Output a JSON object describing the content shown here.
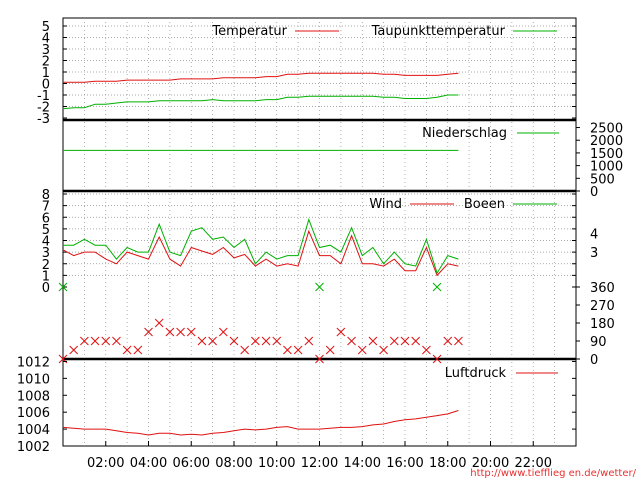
{
  "source_url": "http://www.tiefflieg en.de/wetter/",
  "colors": {
    "red": "#e01010",
    "green": "#00b000",
    "grid": "#909090",
    "axis": "#000000",
    "url": "#e83030"
  },
  "chart_data": [
    {
      "type": "line",
      "panel": "temperature",
      "x": [
        0,
        0.5,
        1,
        1.5,
        2,
        2.5,
        3,
        3.5,
        4,
        4.5,
        5,
        5.5,
        6,
        6.5,
        7,
        7.5,
        8,
        8.5,
        9,
        9.5,
        10,
        10.5,
        11,
        11.5,
        12,
        12.5,
        13,
        13.5,
        14,
        14.5,
        15,
        15.5,
        16,
        16.5,
        17,
        17.5,
        18,
        18.5
      ],
      "series": [
        {
          "name": "Temperatur",
          "color": "#e01010",
          "values": [
            0.1,
            0.1,
            0.1,
            0.2,
            0.2,
            0.2,
            0.3,
            0.3,
            0.3,
            0.3,
            0.3,
            0.4,
            0.4,
            0.4,
            0.4,
            0.5,
            0.5,
            0.5,
            0.5,
            0.6,
            0.6,
            0.8,
            0.8,
            0.9,
            0.9,
            0.9,
            0.9,
            0.9,
            0.9,
            0.9,
            0.8,
            0.8,
            0.7,
            0.7,
            0.7,
            0.7,
            0.8,
            0.9
          ]
        },
        {
          "name": "Taupunkttemperatur",
          "color": "#00b000",
          "values": [
            -2.2,
            -2.1,
            -2.1,
            -1.8,
            -1.8,
            -1.7,
            -1.6,
            -1.6,
            -1.6,
            -1.5,
            -1.5,
            -1.5,
            -1.5,
            -1.5,
            -1.4,
            -1.5,
            -1.5,
            -1.5,
            -1.5,
            -1.4,
            -1.4,
            -1.2,
            -1.2,
            -1.1,
            -1.1,
            -1.1,
            -1.1,
            -1.1,
            -1.1,
            -1.1,
            -1.2,
            -1.2,
            -1.3,
            -1.3,
            -1.3,
            -1.2,
            -1.0,
            -1.0
          ]
        }
      ],
      "ylim": [
        -3,
        5
      ],
      "yticks": [
        "-3",
        "-2",
        "-1",
        "0",
        "1",
        "2",
        "3",
        "4",
        "5"
      ],
      "legend": "top-right",
      "grid": true
    },
    {
      "type": "line",
      "panel": "precipitation",
      "x": [
        0,
        18.5
      ],
      "series": [
        {
          "name": "Niederschlag",
          "color": "#00b000",
          "values": [
            1600,
            1600
          ]
        }
      ],
      "ylim": [
        0,
        2600
      ],
      "yticks": [
        "2500",
        "2000",
        "1500",
        "1000",
        "500",
        "0"
      ],
      "y_axis_side": "right",
      "legend": "top-right"
    },
    {
      "type": "line",
      "panel": "wind",
      "x": [
        0,
        0.5,
        1,
        1.5,
        2,
        2.5,
        3,
        3.5,
        4,
        4.5,
        5,
        5.5,
        6,
        6.5,
        7,
        7.5,
        8,
        8.5,
        9,
        9.5,
        10,
        10.5,
        11,
        11.5,
        12,
        12.5,
        13,
        13.5,
        14,
        14.5,
        15,
        15.5,
        16,
        16.5,
        17,
        17.5,
        18,
        18.5
      ],
      "series": [
        {
          "name": "Wind",
          "color": "#e01010",
          "values": [
            3.2,
            2.7,
            3.0,
            3.0,
            2.4,
            2.0,
            3.0,
            2.7,
            2.4,
            4.3,
            2.4,
            1.8,
            3.4,
            3.1,
            2.8,
            3.4,
            2.5,
            2.8,
            1.8,
            2.4,
            1.8,
            2.0,
            1.8,
            4.8,
            2.7,
            2.7,
            2.0,
            4.4,
            2.0,
            2.0,
            1.8,
            2.4,
            1.4,
            1.4,
            3.4,
            1.0,
            2.0,
            1.8
          ]
        },
        {
          "name": "Boeen",
          "color": "#00b000",
          "values": [
            3.6,
            3.6,
            4.1,
            3.6,
            3.6,
            2.4,
            3.4,
            3.0,
            3.0,
            5.4,
            3.0,
            2.7,
            4.8,
            5.1,
            4.1,
            4.3,
            3.4,
            4.1,
            2.0,
            3.0,
            2.4,
            2.7,
            2.7,
            5.8,
            3.4,
            3.6,
            3.0,
            5.1,
            2.7,
            3.4,
            2.0,
            3.0,
            2.0,
            1.8,
            4.1,
            1.2,
            2.7,
            2.4
          ]
        }
      ],
      "ylim": [
        0,
        8
      ],
      "yticks": [
        "0",
        "1",
        "2",
        "3",
        "4",
        "5",
        "6",
        "7",
        "8"
      ],
      "right_labels": [
        "4",
        "3"
      ],
      "legend": "top-right",
      "grid": true
    },
    {
      "type": "scatter",
      "panel": "wind_direction",
      "x": [
        0,
        0.5,
        1,
        1.5,
        2,
        2.5,
        3,
        3.5,
        4,
        4.5,
        5,
        5.5,
        6,
        6.5,
        7,
        7.5,
        8,
        8.5,
        9,
        9.5,
        10,
        10.5,
        11,
        11.5,
        12,
        12.5,
        13,
        13.5,
        14,
        14.5,
        15,
        15.5,
        16,
        16.5,
        17,
        17.5,
        18,
        18.5
      ],
      "values": [
        0,
        45,
        90,
        90,
        90,
        90,
        45,
        45,
        135,
        180,
        135,
        135,
        135,
        90,
        90,
        135,
        90,
        45,
        90,
        90,
        90,
        45,
        45,
        90,
        0,
        45,
        135,
        90,
        45,
        90,
        45,
        90,
        90,
        90,
        45,
        0,
        90,
        90
      ],
      "ylim": [
        0,
        360
      ],
      "yticks": [
        "0",
        "90",
        "180",
        "270",
        "360"
      ],
      "y_axis_side": "right"
    },
    {
      "type": "line",
      "panel": "pressure",
      "x": [
        0,
        0.5,
        1,
        1.5,
        2,
        2.5,
        3,
        3.5,
        4,
        4.5,
        5,
        5.5,
        6,
        6.5,
        7,
        7.5,
        8,
        8.5,
        9,
        9.5,
        10,
        10.5,
        11,
        11.5,
        12,
        12.5,
        13,
        13.5,
        14,
        14.5,
        15,
        15.5,
        16,
        16.5,
        17,
        17.5,
        18,
        18.5
      ],
      "series": [
        {
          "name": "Luftdruck",
          "color": "#e01010",
          "values": [
            1004.2,
            1004.1,
            1004.0,
            1004.0,
            1004.0,
            1003.8,
            1003.6,
            1003.5,
            1003.3,
            1003.5,
            1003.5,
            1003.3,
            1003.4,
            1003.3,
            1003.5,
            1003.6,
            1003.8,
            1004.0,
            1003.9,
            1004.0,
            1004.2,
            1004.3,
            1004.0,
            1004.0,
            1004.0,
            1004.1,
            1004.2,
            1004.2,
            1004.3,
            1004.5,
            1004.6,
            1004.9,
            1005.1,
            1005.2,
            1005.4,
            1005.6,
            1005.8,
            1006.2
          ]
        }
      ],
      "ylim": [
        1002,
        1013
      ],
      "yticks": [
        "1002",
        "1004",
        "1006",
        "1008",
        "1010",
        "1012"
      ],
      "xticks": [
        "02:00",
        "04:00",
        "06:00",
        "08:00",
        "10:00",
        "12:00",
        "14:00",
        "16:00",
        "18:00",
        "20:00",
        "22:00"
      ],
      "legend": "top-right"
    }
  ]
}
